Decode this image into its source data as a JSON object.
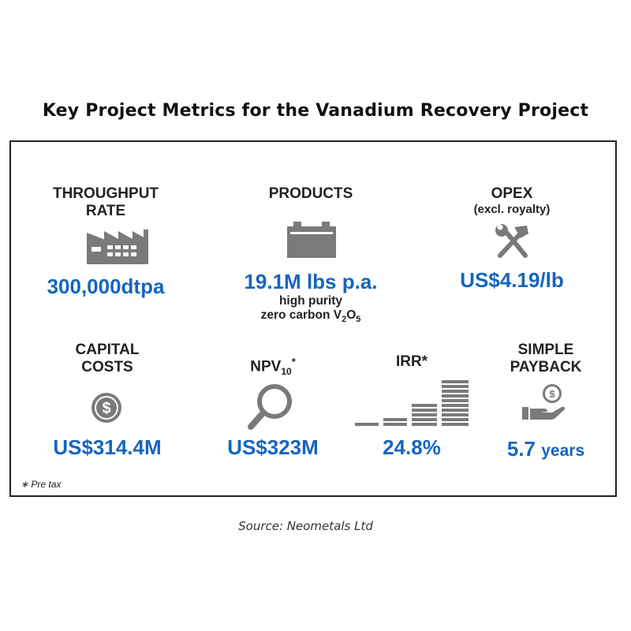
{
  "title": "Key Project Metrics for the Vanadium Recovery Project",
  "metrics": {
    "throughput": {
      "label_line1": "THROUGHPUT",
      "label_line2": "RATE",
      "value": "300,000dtpa",
      "icon": "factory-icon"
    },
    "products": {
      "label": "PRODUCTS",
      "value": "19.1M lbs p.a.",
      "desc_line1": "high purity",
      "desc_prefix": "zero carbon V",
      "desc_sub1": "2",
      "desc_mid": "O",
      "desc_sub2": "5",
      "icon": "battery-icon"
    },
    "opex": {
      "label": "OPEX",
      "sublabel": "(excl. royalty)",
      "value": "US$4.19/lb",
      "icon": "tools-icon"
    },
    "capital": {
      "label_line1": "CAPITAL",
      "label_line2": "COSTS",
      "value": "US$314.4M",
      "icon": "dollar-coin-icon"
    },
    "npv": {
      "label_prefix": "NPV",
      "label_sub": "10",
      "label_suffix": "*",
      "value": "US$323M",
      "icon": "magnifier-icon"
    },
    "irr": {
      "label": "IRR*",
      "value": "24.8%",
      "icon": "bar-stack-icon"
    },
    "payback": {
      "label_line1": "SIMPLE",
      "label_line2": "PAYBACK",
      "value_number": "5.7",
      "value_unit": "years",
      "icon": "hand-coin-icon"
    }
  },
  "footnote": "∗ Pre tax",
  "source": "Source: Neometals Ltd",
  "colors": {
    "accent": "#1565c0",
    "icon": "#7a7a7a",
    "text": "#222222"
  }
}
